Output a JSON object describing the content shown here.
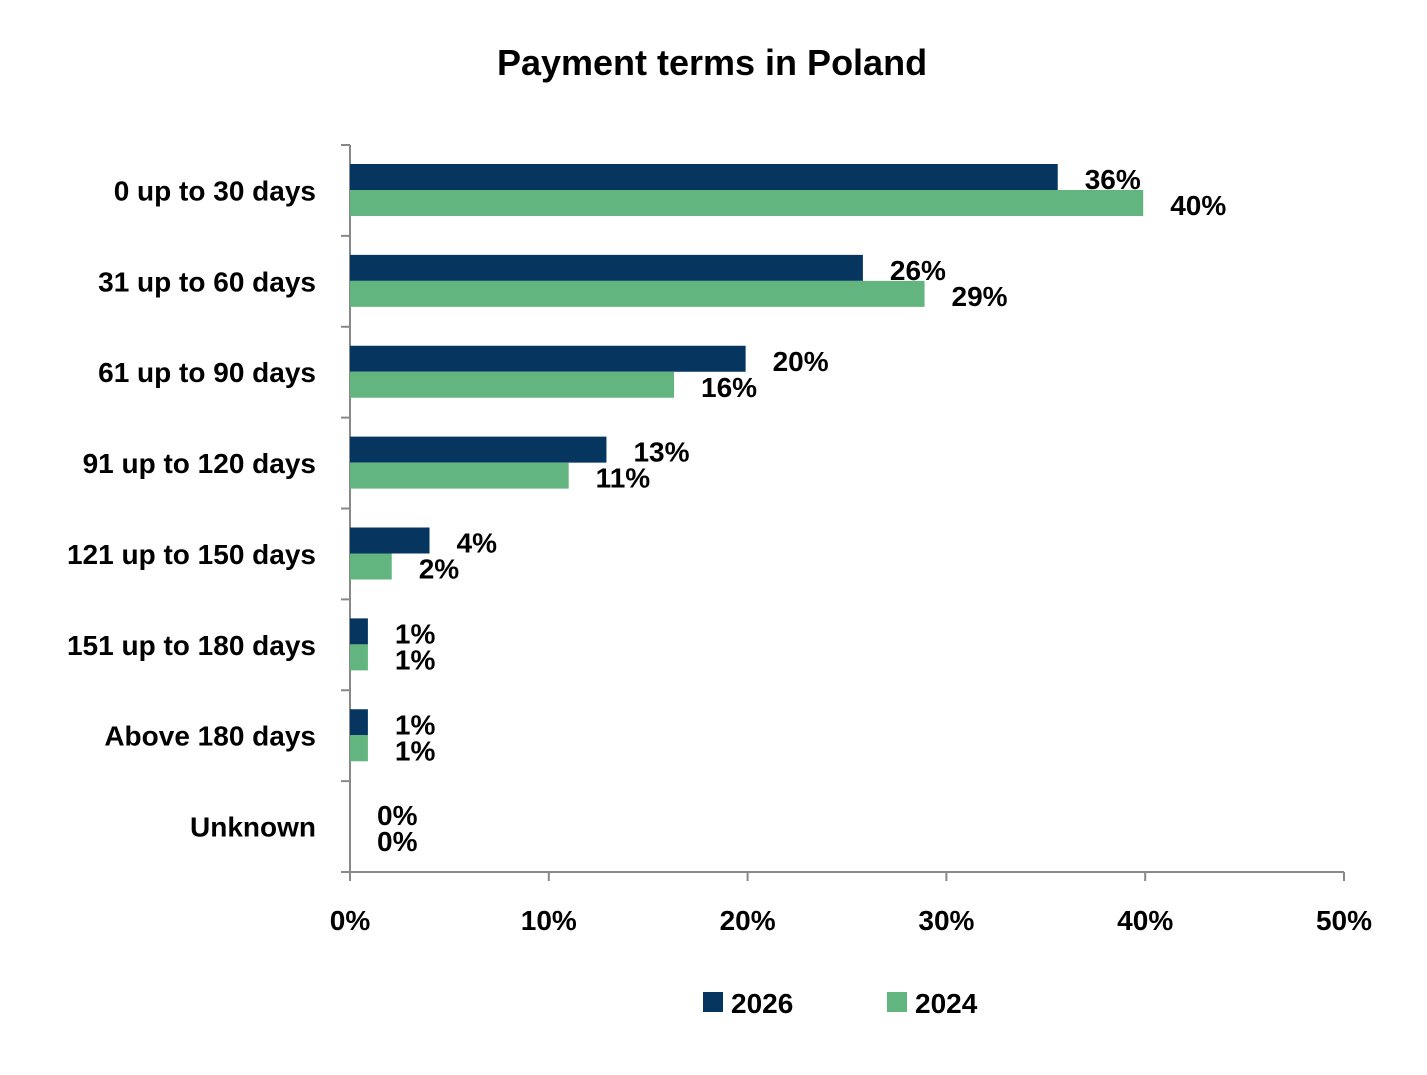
{
  "chart_data": {
    "type": "bar",
    "orientation": "horizontal",
    "title": "Payment terms in Poland",
    "xlabel": "",
    "ylabel": "",
    "xlim": [
      0,
      50
    ],
    "x_ticks": [
      "0%",
      "10%",
      "20%",
      "30%",
      "40%",
      "50%"
    ],
    "grid": false,
    "legend_position": "bottom",
    "categories": [
      "0 up to 30 days",
      "31 up to 60 days",
      "61 up to 90 days",
      "91 up to 120 days",
      "121 up to 150 days",
      "151 up to 180 days",
      "Above 180 days",
      "Unknown"
    ],
    "series": [
      {
        "name": "2026",
        "color": "#06365F",
        "values": [
          35.6,
          25.8,
          19.9,
          12.9,
          4.0,
          0.9,
          0.9,
          0
        ],
        "labels": [
          "36%",
          "26%",
          "20%",
          "13%",
          "4%",
          "1%",
          "1%",
          "0%"
        ]
      },
      {
        "name": "2024",
        "color": "#62B57E",
        "values": [
          39.9,
          28.9,
          16.3,
          11.0,
          2.1,
          0.9,
          0.9,
          0
        ],
        "labels": [
          "40%",
          "29%",
          "16%",
          "11%",
          "2%",
          "1%",
          "1%",
          "0%"
        ]
      }
    ]
  }
}
